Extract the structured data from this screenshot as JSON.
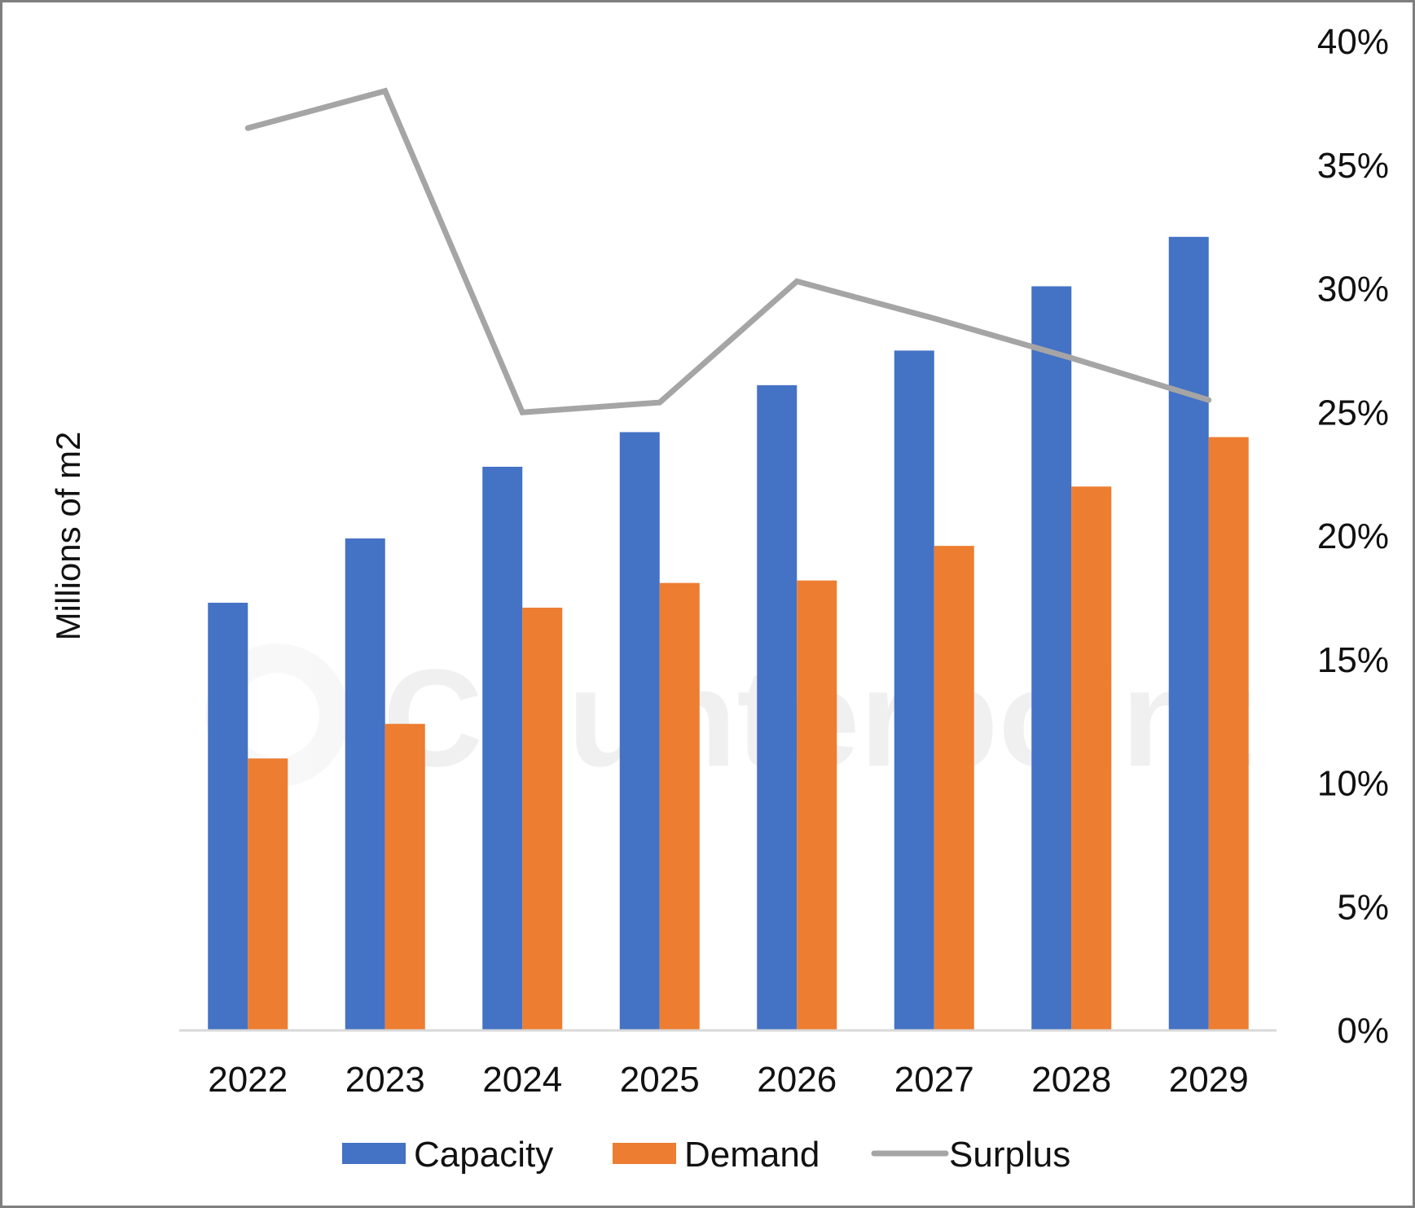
{
  "chart_data": {
    "type": "bar",
    "categories": [
      "2022",
      "2023",
      "2024",
      "2025",
      "2026",
      "2027",
      "2028",
      "2029"
    ],
    "series": [
      {
        "name": "Capacity",
        "kind": "bar",
        "axis": "left",
        "color": "#4472C4",
        "values": [
          17.3,
          19.9,
          22.8,
          24.2,
          26.1,
          27.5,
          30.1,
          32.1
        ]
      },
      {
        "name": "Demand",
        "kind": "bar",
        "axis": "left",
        "color": "#ED7D31",
        "values": [
          11.0,
          12.4,
          17.1,
          18.1,
          18.2,
          19.6,
          22.0,
          24.0
        ]
      },
      {
        "name": "Surplus",
        "kind": "line",
        "axis": "right",
        "color": "#A5A5A5",
        "values": [
          0.365,
          0.38,
          0.25,
          0.254,
          0.303,
          0.288,
          0.272,
          0.255
        ]
      }
    ],
    "ylabel": "Millions of m2",
    "ylim": [
      0,
      40
    ],
    "y2ticks": [
      "0%",
      "5%",
      "10%",
      "15%",
      "20%",
      "25%",
      "30%",
      "35%",
      "40%"
    ],
    "y2lim": [
      0,
      0.4
    ],
    "grid": false,
    "legend_position": "bottom",
    "watermark": "Counterpoint"
  }
}
